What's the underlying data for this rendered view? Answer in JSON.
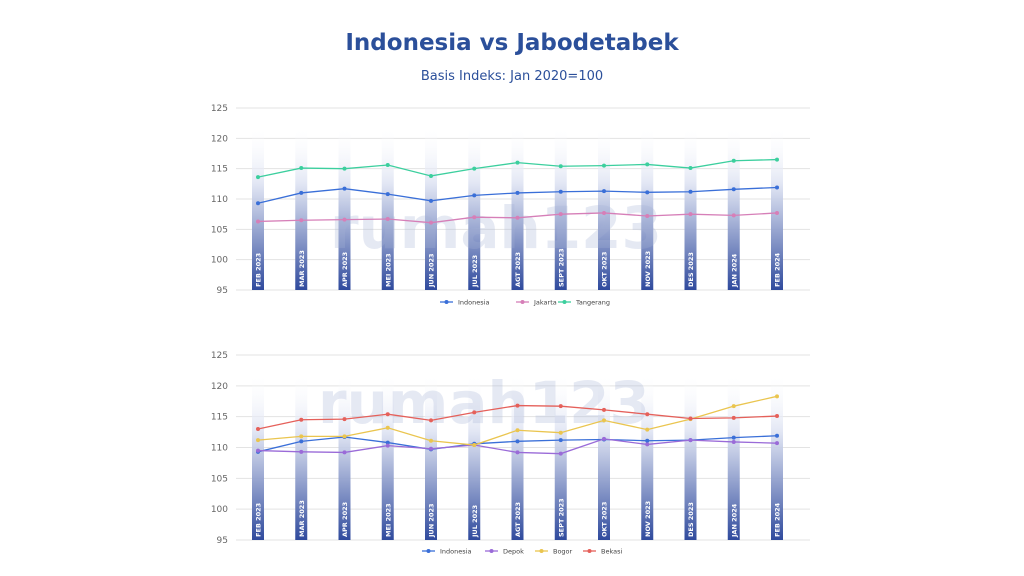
{
  "page": {
    "title": "Indonesia vs Jabodetabek",
    "subtitle": "Basis Indeks: Jan 2020=100",
    "watermark": "rumah123"
  },
  "chart_data": [
    {
      "type": "line",
      "categories": [
        "FEB 2023",
        "MAR 2023",
        "APR 2023",
        "MEI 2023",
        "JUN 2023",
        "JUL 2023",
        "AGT 2023",
        "SEPT 2023",
        "OKT 2023",
        "NOV 2023",
        "DES 2023",
        "JAN 2024",
        "FEB 2024"
      ],
      "ylim": [
        95,
        125
      ],
      "yticks": [
        95,
        100,
        105,
        110,
        115,
        120,
        125
      ],
      "grid": true,
      "legend": "bottom-center",
      "series": [
        {
          "name": "Indonesia",
          "color": "#3a6fd8",
          "values": [
            109.3,
            111.0,
            111.7,
            110.8,
            109.7,
            110.6,
            111.0,
            111.2,
            111.3,
            111.1,
            111.2,
            111.6,
            111.9
          ]
        },
        {
          "name": "Jakarta",
          "color": "#d67fb8",
          "values": [
            106.3,
            106.5,
            106.6,
            106.7,
            106.1,
            107.0,
            106.9,
            107.5,
            107.7,
            107.2,
            107.5,
            107.3,
            107.7
          ]
        },
        {
          "name": "Tangerang",
          "color": "#3ccf9e",
          "values": [
            113.6,
            115.1,
            115.0,
            115.6,
            113.8,
            115.0,
            116.0,
            115.4,
            115.5,
            115.7,
            115.1,
            116.3,
            116.5
          ]
        }
      ]
    },
    {
      "type": "line",
      "categories": [
        "FEB 2023",
        "MAR 2023",
        "APR 2023",
        "MEI 2023",
        "JUN 2023",
        "JUL 2023",
        "AGT 2023",
        "SEPT 2023",
        "OKT 2023",
        "NOV 2023",
        "DES 2023",
        "JAN 2024",
        "FEB 2024"
      ],
      "ylim": [
        95,
        125
      ],
      "yticks": [
        95,
        100,
        105,
        110,
        115,
        120,
        125
      ],
      "grid": true,
      "legend": "bottom-center",
      "series": [
        {
          "name": "Indonesia",
          "color": "#3a6fd8",
          "values": [
            109.3,
            111.0,
            111.7,
            110.8,
            109.7,
            110.6,
            111.0,
            111.2,
            111.3,
            111.1,
            111.2,
            111.6,
            111.9
          ]
        },
        {
          "name": "Depok",
          "color": "#9a6bd8",
          "values": [
            109.5,
            109.3,
            109.2,
            110.3,
            109.8,
            110.4,
            109.2,
            109.0,
            111.4,
            110.5,
            111.2,
            110.9,
            110.7
          ]
        },
        {
          "name": "Bogor",
          "color": "#eac54f",
          "values": [
            111.2,
            111.8,
            111.8,
            113.2,
            111.1,
            110.4,
            112.8,
            112.4,
            114.4,
            112.9,
            114.6,
            116.7,
            118.3
          ]
        },
        {
          "name": "Bekasi",
          "color": "#e5605a",
          "values": [
            113.0,
            114.5,
            114.6,
            115.4,
            114.4,
            115.7,
            116.8,
            116.7,
            116.1,
            115.4,
            114.7,
            114.8,
            115.1
          ]
        }
      ]
    }
  ]
}
